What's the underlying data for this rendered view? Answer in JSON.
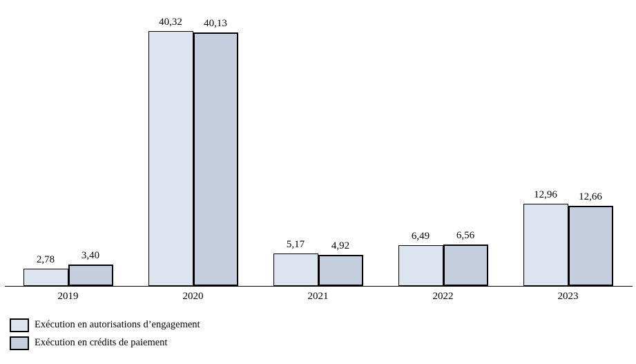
{
  "chart": {
    "background": "#ffffff",
    "axis_color": "#000000",
    "text_color": "#000000"
  },
  "chart_data": {
    "type": "bar",
    "title": "",
    "xlabel": "",
    "ylabel": "",
    "categories": [
      "2019",
      "2020",
      "2021",
      "2022",
      "2023"
    ],
    "series": [
      {
        "name": "Exécution en autorisations d’engagement",
        "color": "#dce4f0",
        "border_color": "#000000",
        "border_px": 1,
        "values": [
          2.78,
          40.32,
          5.17,
          6.49,
          12.96
        ],
        "labels": [
          "2,78",
          "40,32",
          "5,17",
          "6,49",
          "12,96"
        ]
      },
      {
        "name": "Exécution en crédits de paiement",
        "color": "#c4cede",
        "border_color": "#000000",
        "border_px": 2,
        "values": [
          3.4,
          40.13,
          4.92,
          6.56,
          12.66
        ],
        "labels": [
          "3,40",
          "40,13",
          "4,92",
          "6,56",
          "12,66"
        ]
      }
    ],
    "ylim": [
      0,
      40.32
    ],
    "grid": false,
    "legend_position": "bottom-left",
    "value_label_format": "decimal-comma"
  }
}
